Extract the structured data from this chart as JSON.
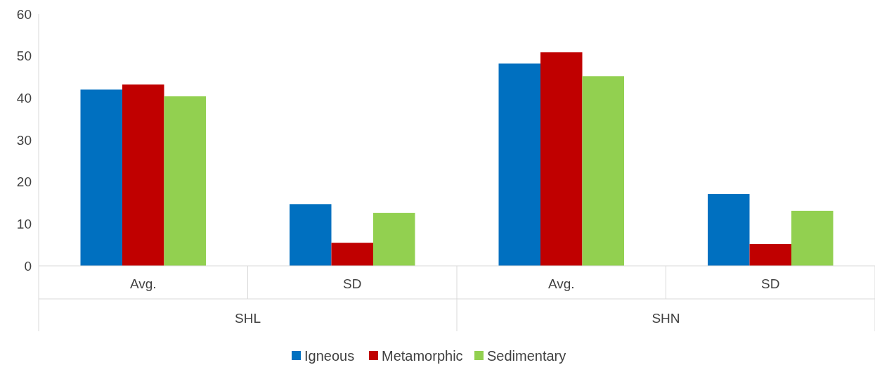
{
  "chart_data": {
    "type": "bar",
    "categories": [
      "Avg.",
      "SD",
      "Avg.",
      "SD"
    ],
    "series": [
      {
        "name": "Igneous",
        "color": "#0070c0",
        "values": [
          42.0,
          14.7,
          48.2,
          17.1
        ]
      },
      {
        "name": "Metamorphic",
        "color": "#c00000",
        "values": [
          43.2,
          5.5,
          50.9,
          5.2
        ]
      },
      {
        "name": "Sedimentary",
        "color": "#92d050",
        "values": [
          40.4,
          12.6,
          45.2,
          13.1
        ]
      }
    ],
    "annotations": [
      "SHL",
      "SHN"
    ],
    "ylim": [
      0,
      60
    ],
    "yticks": [
      0,
      10,
      20,
      30,
      40,
      50,
      60
    ],
    "grid": false,
    "legend": "bottom"
  }
}
